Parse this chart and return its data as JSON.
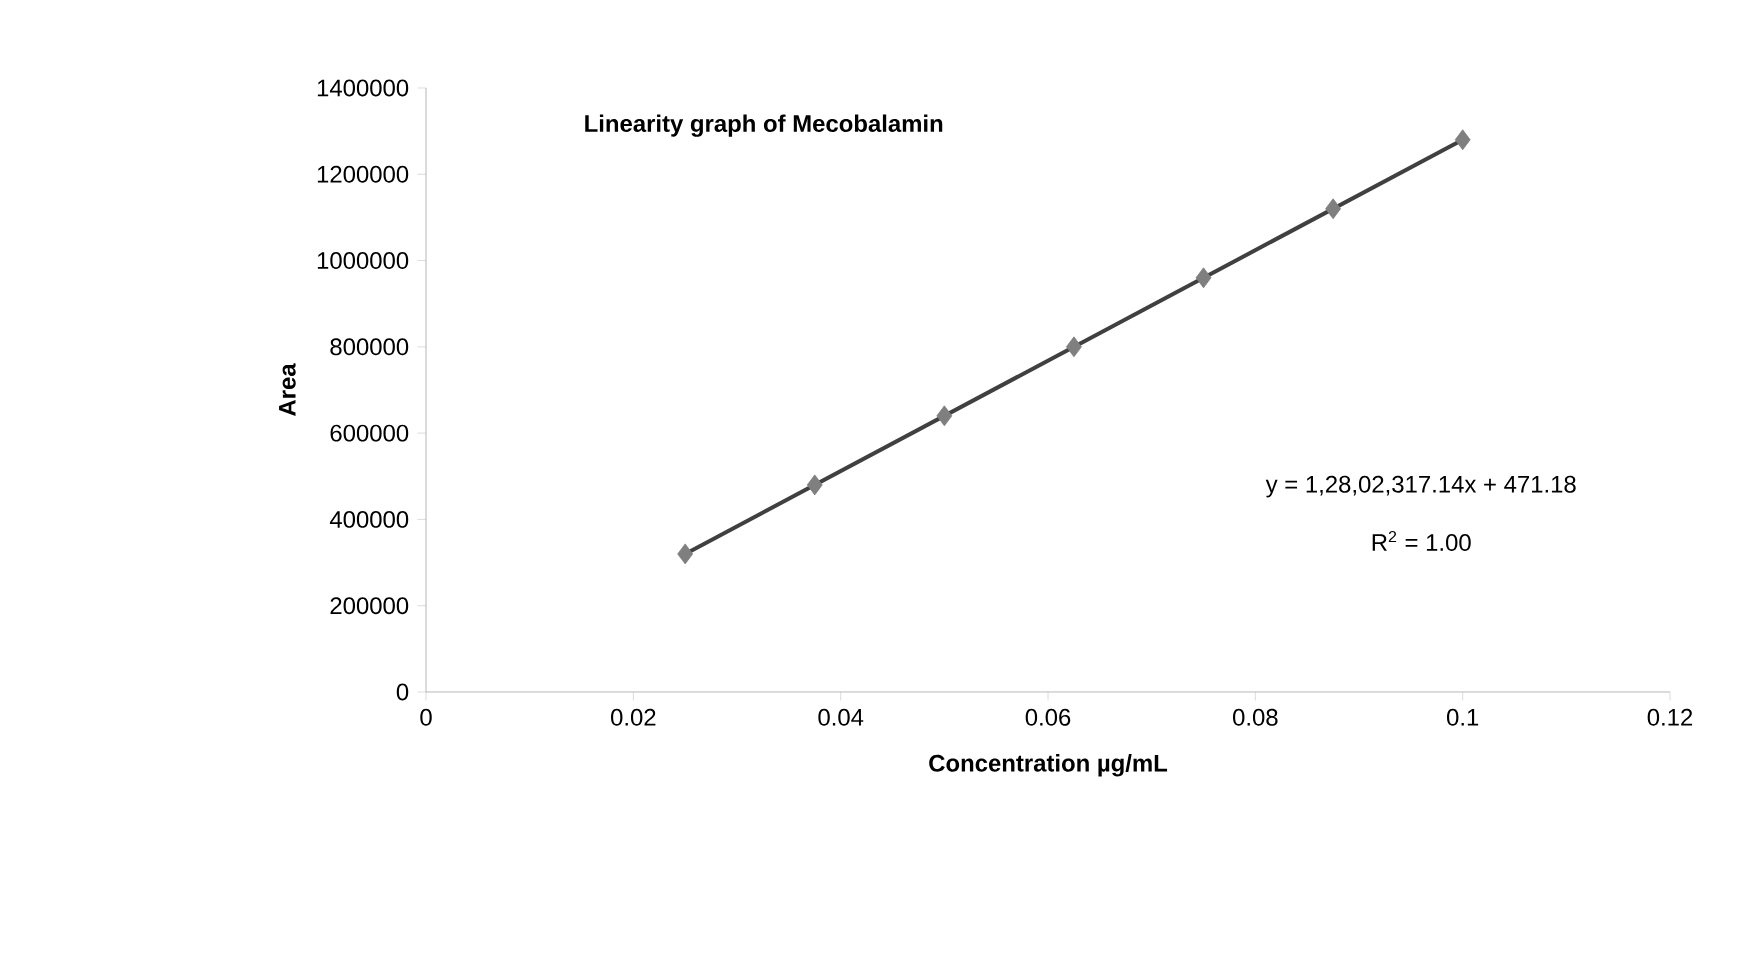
{
  "chart_data": {
    "type": "scatter",
    "title": "Linearity graph of Mecobalamin",
    "xlabel": "Concentration µg/mL",
    "ylabel": "Area",
    "annotations": [
      "y = 1,28,02,317.14x + 471.18",
      "R$^{2}$ = 1.00"
    ],
    "xlim": [
      0,
      0.12
    ],
    "ylim": [
      0,
      1400000
    ],
    "xticks": [
      0,
      0.02,
      0.04,
      0.06,
      0.08,
      0.1,
      0.12
    ],
    "yticks": [
      0,
      200000,
      400000,
      600000,
      800000,
      1000000,
      1200000,
      1400000
    ],
    "grid": false,
    "series": [
      {
        "marker": "diamond",
        "color": "#7f7f7f",
        "x": [
          0.025,
          0.0375,
          0.05,
          0.0625,
          0.075,
          0.0875,
          0.1
        ],
        "values": [
          320000,
          480000,
          640000,
          800000,
          960000,
          1120000,
          1280000
        ]
      },
      {
        "type": "line",
        "marker": "none",
        "color": "#404040",
        "x": [
          0.025,
          0.1
        ],
        "values": [
          320000,
          1280000
        ]
      }
    ]
  }
}
